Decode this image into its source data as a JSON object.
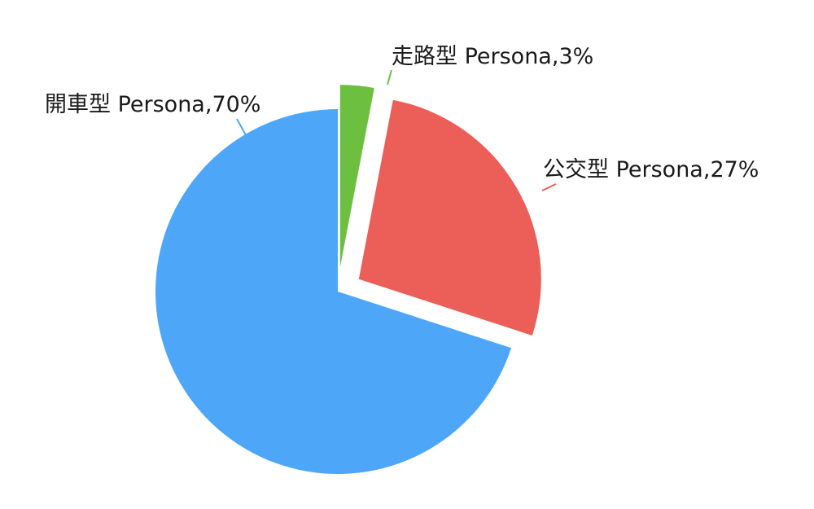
{
  "chart_data": {
    "type": "pie",
    "title": "",
    "slices": [
      {
        "label": "走路型 Persona,3%",
        "value": 3,
        "color": "#6cbf3f",
        "exploded": true
      },
      {
        "label": "公交型 Persona,27%",
        "value": 27,
        "color": "#ec5e58",
        "exploded": true
      },
      {
        "label": "開車型 Persona,70%",
        "value": 70,
        "color": "#4da6f8",
        "exploded": false
      }
    ],
    "start_angle": "12 o'clock",
    "direction": "clockwise",
    "legend": "none"
  }
}
